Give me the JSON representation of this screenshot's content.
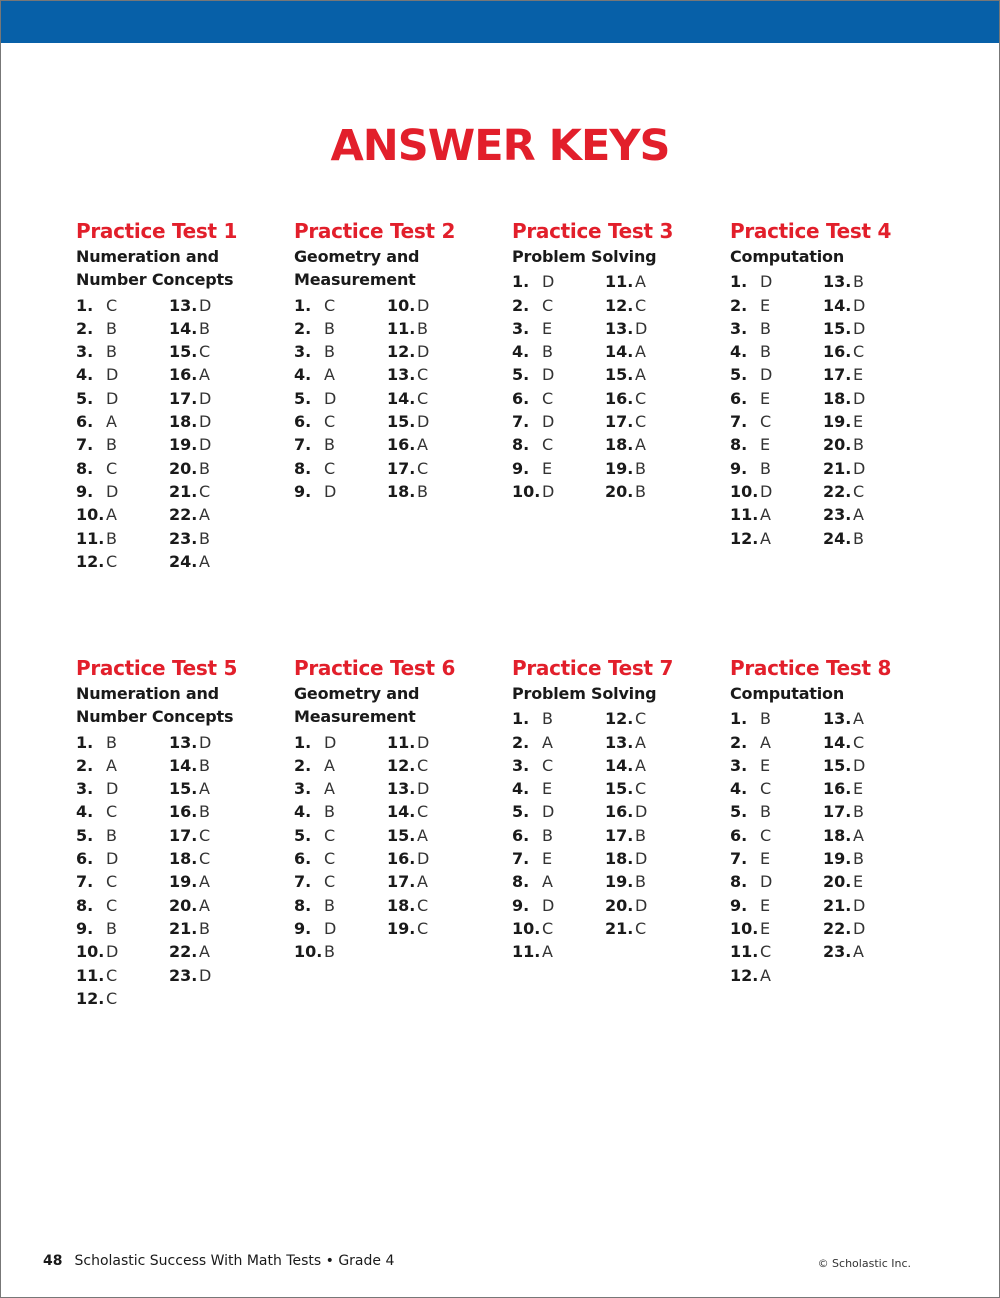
{
  "header_color": "#0760a8",
  "accent_color": "#e21f2b",
  "title": "ANSWER KEYS",
  "tests": [
    {
      "heading": "Practice Test 1",
      "subtitle": [
        "Numeration and",
        "Number Concepts"
      ],
      "answers": [
        "C",
        "B",
        "B",
        "D",
        "D",
        "A",
        "B",
        "C",
        "D",
        "A",
        "B",
        "C",
        "D",
        "B",
        "C",
        "A",
        "D",
        "D",
        "D",
        "B",
        "C",
        "A",
        "B",
        "A"
      ]
    },
    {
      "heading": "Practice Test 2",
      "subtitle": [
        "Geometry and",
        "Measurement"
      ],
      "answers": [
        "C",
        "B",
        "B",
        "A",
        "D",
        "C",
        "B",
        "C",
        "D",
        "D",
        "B",
        "D",
        "C",
        "C",
        "D",
        "A",
        "C",
        "B"
      ]
    },
    {
      "heading": "Practice Test 3",
      "subtitle": [
        "Problem Solving"
      ],
      "answers": [
        "D",
        "C",
        "E",
        "B",
        "D",
        "C",
        "D",
        "C",
        "E",
        "D",
        "A",
        "C",
        "D",
        "A",
        "A",
        "C",
        "C",
        "A",
        "B",
        "B"
      ]
    },
    {
      "heading": "Practice Test 4",
      "subtitle": [
        "Computation"
      ],
      "answers": [
        "D",
        "E",
        "B",
        "B",
        "D",
        "E",
        "C",
        "E",
        "B",
        "D",
        "A",
        "A",
        "B",
        "D",
        "D",
        "C",
        "E",
        "D",
        "E",
        "B",
        "D",
        "C",
        "A",
        "B"
      ]
    },
    {
      "heading": "Practice Test 5",
      "subtitle": [
        "Numeration and",
        "Number Concepts"
      ],
      "answers": [
        "B",
        "A",
        "D",
        "C",
        "B",
        "D",
        "C",
        "C",
        "B",
        "D",
        "C",
        "C",
        "D",
        "B",
        "A",
        "B",
        "C",
        "C",
        "A",
        "A",
        "B",
        "A",
        "D"
      ]
    },
    {
      "heading": "Practice Test 6",
      "subtitle": [
        "Geometry and",
        "Measurement"
      ],
      "answers": [
        "D",
        "A",
        "A",
        "B",
        "C",
        "C",
        "C",
        "B",
        "D",
        "B",
        "D",
        "C",
        "D",
        "C",
        "A",
        "D",
        "A",
        "C",
        "C"
      ]
    },
    {
      "heading": "Practice Test 7",
      "subtitle": [
        "Problem Solving"
      ],
      "answers": [
        "B",
        "A",
        "C",
        "E",
        "D",
        "B",
        "E",
        "A",
        "D",
        "C",
        "A",
        "C",
        "A",
        "A",
        "C",
        "D",
        "B",
        "D",
        "B",
        "D",
        "C"
      ]
    },
    {
      "heading": "Practice Test 8",
      "subtitle": [
        "Computation"
      ],
      "answers": [
        "B",
        "A",
        "E",
        "C",
        "B",
        "C",
        "E",
        "D",
        "E",
        "E",
        "C",
        "A",
        "A",
        "C",
        "D",
        "E",
        "B",
        "A",
        "B",
        "E",
        "D",
        "D",
        "A"
      ]
    }
  ],
  "footer": {
    "page_number": "48",
    "book_title": "Scholastic Success With Math Tests • Grade 4",
    "copyright": "© Scholastic Inc."
  }
}
